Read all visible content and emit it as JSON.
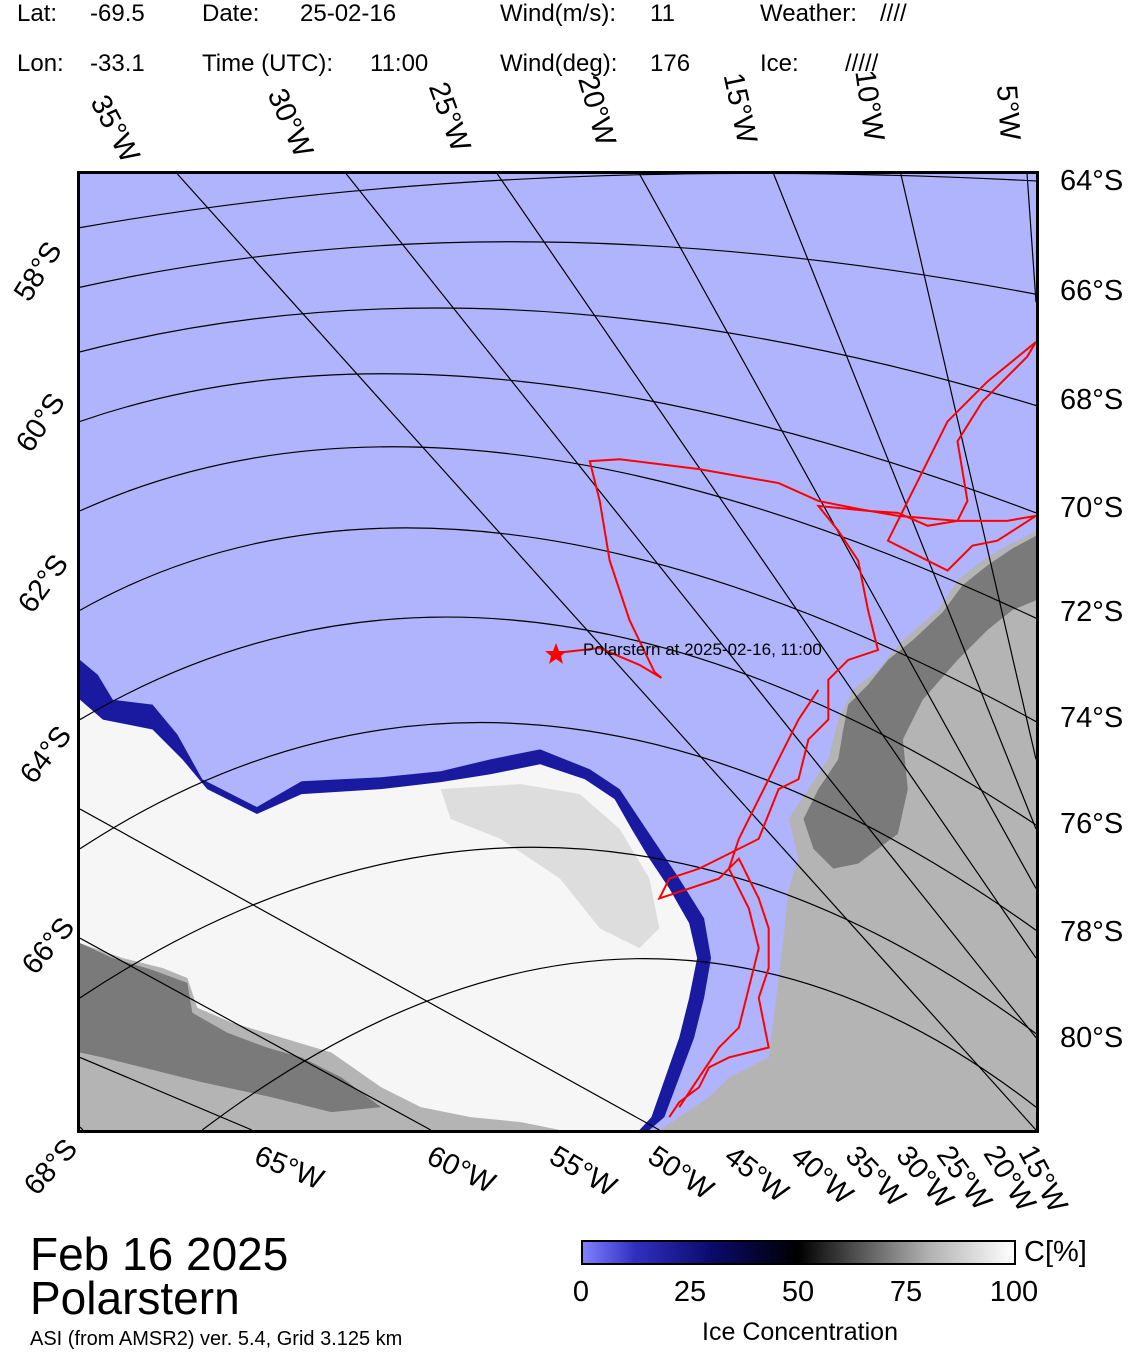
{
  "header": {
    "lat_label": "Lat:",
    "lat_value": "-69.5",
    "date_label": "Date:",
    "date_value": "25-02-16",
    "wind_ms_label": "Wind(m/s):",
    "wind_ms_value": "11",
    "weather_label": "Weather:",
    "weather_value": "////",
    "lon_label": "Lon:",
    "lon_value": "-33.1",
    "time_label": "Time (UTC):",
    "time_value": "11:00",
    "wind_deg_label": "Wind(deg):",
    "wind_deg_value": "176",
    "ice_label": "Ice:",
    "ice_value": "/////"
  },
  "map": {
    "top_lon_labels": [
      "35°W",
      "30°W",
      "25°W",
      "20°W",
      "15°W",
      "10°W",
      "5°W"
    ],
    "bottom_lon_labels": [
      "65°W",
      "60°W",
      "55°W",
      "50°W",
      "45°W",
      "40°W",
      "35°W",
      "30°W",
      "25°W",
      "20°W",
      "15°W"
    ],
    "right_lat_labels": [
      "64°S",
      "66°S",
      "68°S",
      "70°S",
      "72°S",
      "74°S",
      "76°S",
      "78°S",
      "80°S"
    ],
    "left_lat_labels": [
      "58°S",
      "60°S",
      "62°S",
      "64°S",
      "66°S",
      "68°S"
    ],
    "ship_label": "Polarstern at 2025-02-16, 11:00",
    "colors": {
      "open_water": "#b0b4fc",
      "ice_edge": "#1a1aa0",
      "sea_ice": "#f4f4f4",
      "land_dark": "#7a7a7a",
      "land_light": "#b4b4b4",
      "track": "#ff0000"
    }
  },
  "footer": {
    "date": "Feb 16 2025",
    "vessel": "Polarstern",
    "source": "ASI (from AMSR2) ver. 5.4,  Grid 3.125 km"
  },
  "colorbar": {
    "unit": "C[%]",
    "ticks": [
      "0",
      "25",
      "50",
      "75",
      "100"
    ],
    "title": "Ice Concentration"
  }
}
